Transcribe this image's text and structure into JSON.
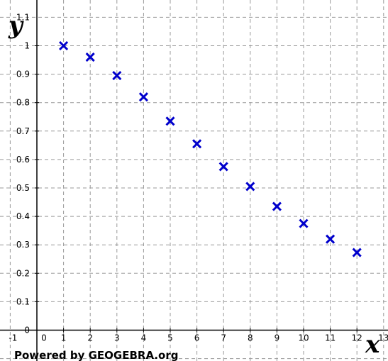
{
  "chart_data": {
    "type": "scatter",
    "title": "",
    "xlabel": "x",
    "ylabel": "y",
    "xlim": [
      -1.3,
      13.1
    ],
    "ylim": [
      -0.12,
      1.12
    ],
    "grid": true,
    "marker": "x",
    "marker_color": "#0000cc",
    "x": [
      1,
      2,
      3,
      4,
      5,
      6,
      7,
      8,
      9,
      10,
      11,
      12
    ],
    "y": [
      1.0,
      0.96,
      0.895,
      0.82,
      0.735,
      0.655,
      0.575,
      0.505,
      0.435,
      0.375,
      0.32,
      0.273
    ],
    "x_ticks": [
      "0",
      "1",
      "2",
      "3",
      "4",
      "5",
      "6",
      "7",
      "8",
      "9",
      "10",
      "11",
      "12"
    ],
    "x_tick_values": [
      0,
      1,
      2,
      3,
      4,
      5,
      6,
      7,
      8,
      9,
      10,
      11,
      12
    ],
    "x_tick_extra_right": "13",
    "x_tick_extra_left": "-1",
    "y_ticks": [
      "0",
      "0.1",
      "0.2",
      "0.3",
      "0.4",
      "0.5",
      "0.6",
      "0.7",
      "0.8",
      "0.9",
      "1"
    ],
    "y_tick_values": [
      0,
      0.1,
      0.2,
      0.3,
      0.4,
      0.5,
      0.6,
      0.7,
      0.8,
      0.9,
      1
    ],
    "y_tick_extra_top": "1.1",
    "credit": "Powered by GEOGEBRA.org"
  }
}
